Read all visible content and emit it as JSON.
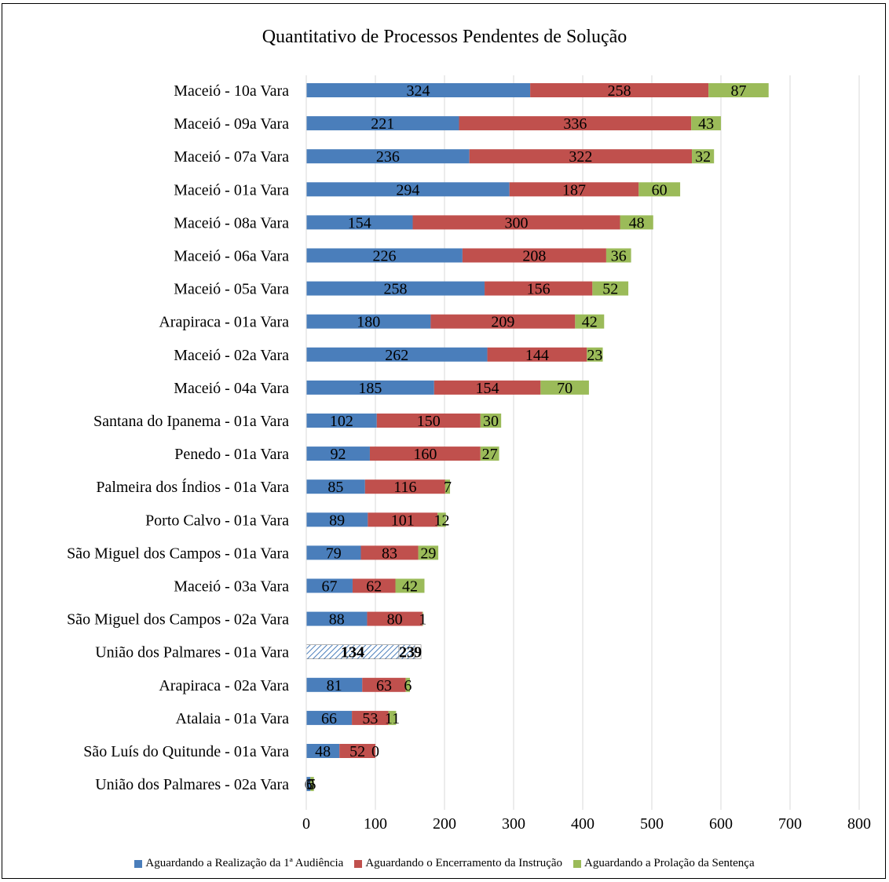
{
  "chart_data": {
    "type": "bar",
    "orientation": "horizontal",
    "stacked": true,
    "title": "Quantitativo de Processos Pendentes de Solução",
    "xlim": [
      0,
      800
    ],
    "x_ticks": [
      "0",
      "100",
      "200",
      "300",
      "400",
      "500",
      "600",
      "700",
      "800"
    ],
    "grid": "vertical",
    "legend_position": "bottom",
    "categories": [
      "Maceió - 10a Vara",
      "Maceió - 09a Vara",
      "Maceió - 07a Vara",
      "Maceió - 01a Vara",
      "Maceió - 08a Vara",
      "Maceió - 06a Vara",
      "Maceió - 05a Vara",
      "Arapiraca - 01a Vara",
      "Maceió - 02a Vara",
      "Maceió - 04a Vara",
      "Santana do Ipanema - 01a Vara",
      "Penedo - 01a Vara",
      "Palmeira dos Índios - 01a Vara",
      "Porto Calvo - 01a Vara",
      "São Miguel dos Campos - 01a Vara",
      "Maceió - 03a Vara",
      "São Miguel dos Campos - 02a Vara",
      "União dos Palmares - 01a Vara",
      "Arapiraca - 02a Vara",
      "Atalaia - 01a Vara",
      "São Luís do Quitunde - 01a Vara",
      "União dos Palmares - 02a Vara"
    ],
    "series": [
      {
        "name": "Aguardando a Realização da 1ª Audiência",
        "color": "#4a7ebb",
        "values": [
          324,
          221,
          236,
          294,
          154,
          226,
          258,
          180,
          262,
          185,
          102,
          92,
          85,
          89,
          79,
          67,
          88,
          134,
          81,
          66,
          48,
          6
        ]
      },
      {
        "name": "Aguardando o Encerramento da Instrução",
        "color": "#c0504d",
        "values": [
          258,
          336,
          322,
          187,
          300,
          208,
          156,
          209,
          144,
          154,
          150,
          160,
          116,
          101,
          83,
          62,
          80,
          23,
          63,
          53,
          52,
          0
        ]
      },
      {
        "name": "Aguardando a Prolação da Sentença",
        "color": "#9bbb59",
        "values": [
          87,
          43,
          32,
          60,
          48,
          36,
          52,
          42,
          23,
          70,
          30,
          27,
          7,
          12,
          29,
          42,
          1,
          9,
          6,
          11,
          0,
          5
        ]
      }
    ]
  }
}
